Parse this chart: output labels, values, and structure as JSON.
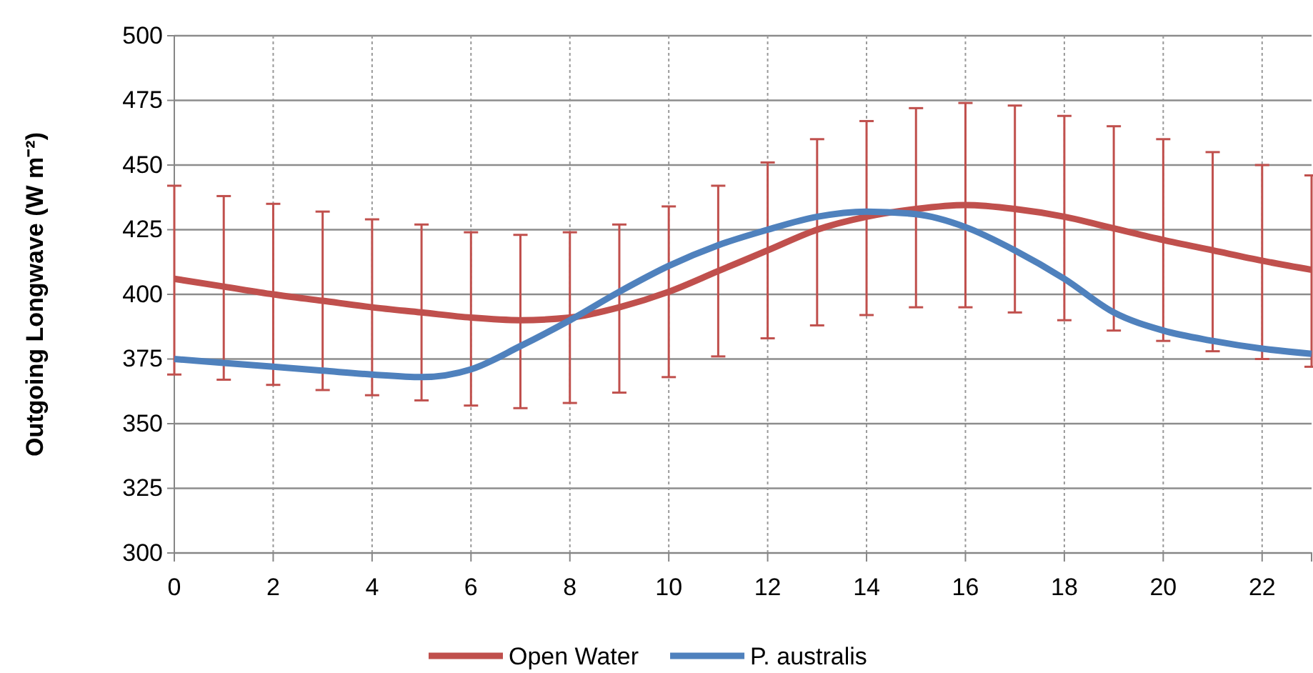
{
  "chart_data": {
    "type": "line",
    "ylabel": "Outgoing Longwave (W m⁻²)",
    "x": [
      0,
      1,
      2,
      3,
      4,
      5,
      6,
      7,
      8,
      9,
      10,
      11,
      12,
      13,
      14,
      15,
      16,
      17,
      18,
      19,
      20,
      21,
      22,
      23
    ],
    "xlim": [
      0,
      23
    ],
    "xticks": [
      0,
      2,
      4,
      6,
      8,
      10,
      12,
      14,
      16,
      18,
      20,
      22
    ],
    "ylim": [
      300,
      500
    ],
    "yticks": [
      300,
      325,
      350,
      375,
      400,
      425,
      450,
      475,
      500
    ],
    "grid": true,
    "legend": "bottom",
    "marker": "none",
    "line_style": "solid",
    "series": [
      {
        "name": "Open Water",
        "color": "#c0504d",
        "values": [
          406,
          403,
          400,
          397.5,
          395,
          393,
          391,
          390,
          391,
          395,
          401,
          409,
          417,
          425,
          430,
          433,
          434.5,
          433,
          430,
          425.5,
          421,
          417,
          413,
          409.5
        ],
        "errors": [
          [
            369,
            442
          ],
          [
            367,
            438
          ],
          [
            365,
            435
          ],
          [
            363,
            432
          ],
          [
            361,
            429
          ],
          [
            359,
            427
          ],
          [
            357,
            424
          ],
          [
            356,
            423
          ],
          [
            358,
            424
          ],
          [
            362,
            427
          ],
          [
            368,
            434
          ],
          [
            376,
            442
          ],
          [
            383,
            451
          ],
          [
            388,
            460
          ],
          [
            392,
            467
          ],
          [
            395,
            472
          ],
          [
            395,
            474
          ],
          [
            393,
            473
          ],
          [
            390,
            469
          ],
          [
            386,
            465
          ],
          [
            382,
            460
          ],
          [
            378,
            455
          ],
          [
            375,
            450
          ],
          [
            372,
            446
          ]
        ]
      },
      {
        "name": "P. australis",
        "color": "#4f81bd",
        "values": [
          375,
          373.5,
          372,
          370.5,
          369,
          368,
          371,
          380,
          390,
          401,
          411,
          419,
          425,
          430,
          432,
          431,
          426,
          417,
          406,
          393,
          386,
          382,
          379,
          377
        ]
      }
    ]
  }
}
